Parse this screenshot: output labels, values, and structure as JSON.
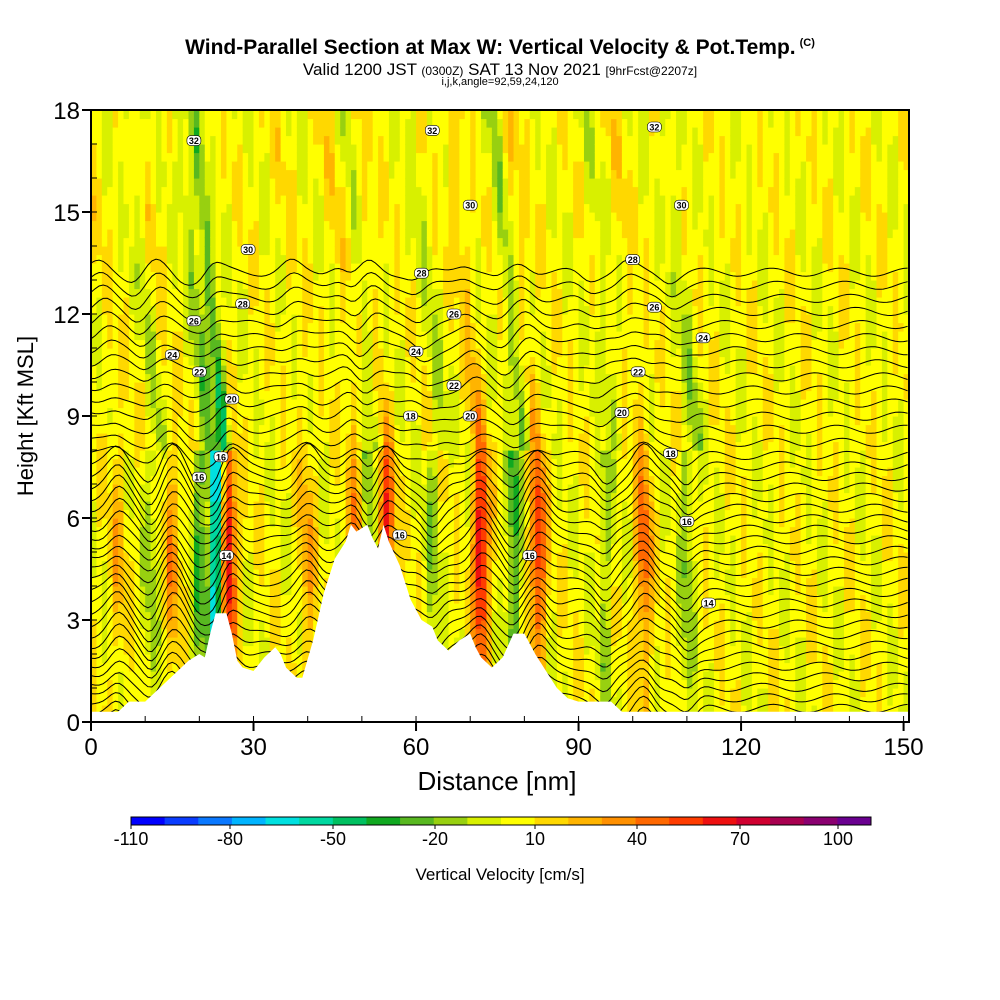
{
  "chart_data": {
    "type": "heatmap",
    "title": "Wind-Parallel Section at Max W: Vertical Velocity & Pot.Temp.",
    "title_mark": "(C)",
    "subtitle_main": "Valid 1200 JST",
    "subtitle_z": "(0300Z)",
    "subtitle_date": "SAT 13 Nov 2021",
    "subtitle_fcst": "[9hrFcst@2207z]",
    "subtitle2": "i,j,k,angle=92,59,24,120",
    "xlabel": "Distance [nm]",
    "ylabel": "Height [Kft MSL]",
    "xlim": [
      0,
      151
    ],
    "ylim": [
      0,
      18
    ],
    "xticks": [
      "0",
      "30",
      "60",
      "90",
      "120",
      "150"
    ],
    "yticks": [
      "0",
      "3",
      "6",
      "9",
      "12",
      "15",
      "18"
    ],
    "colorbar": {
      "label": "Vertical Velocity [cm/s]",
      "tick_labels": [
        "-110",
        "-80",
        "-50",
        "-20",
        "10",
        "40",
        "70",
        "100"
      ],
      "colors": [
        "#0000ff",
        "#0a3cff",
        "#0a78ff",
        "#00b4ff",
        "#00e0e0",
        "#00d8a0",
        "#00c060",
        "#10a820",
        "#58b820",
        "#98d010",
        "#d8f000",
        "#ffff00",
        "#ffd800",
        "#ffb400",
        "#ff9000",
        "#ff6800",
        "#ff3c00",
        "#ee1010",
        "#d00030",
        "#a80050",
        "#8a0070",
        "#6a0090"
      ]
    },
    "terrain": [
      [
        0,
        0.3
      ],
      [
        5,
        0.3
      ],
      [
        7,
        0.6
      ],
      [
        10,
        0.6
      ],
      [
        12,
        0.9
      ],
      [
        14,
        1.2
      ],
      [
        16,
        1.5
      ],
      [
        18,
        1.8
      ],
      [
        20,
        2.0
      ],
      [
        21,
        1.9
      ],
      [
        22,
        2.6
      ],
      [
        23,
        3.2
      ],
      [
        25,
        3.2
      ],
      [
        26,
        2.6
      ],
      [
        27,
        1.8
      ],
      [
        28,
        1.6
      ],
      [
        30,
        1.5
      ],
      [
        32,
        1.9
      ],
      [
        34,
        2.2
      ],
      [
        35,
        2.0
      ],
      [
        36,
        1.6
      ],
      [
        38,
        1.3
      ],
      [
        39,
        1.3
      ],
      [
        41,
        2.4
      ],
      [
        43,
        3.8
      ],
      [
        45,
        4.8
      ],
      [
        47,
        5.3
      ],
      [
        48,
        5.8
      ],
      [
        49,
        5.6
      ],
      [
        51,
        5.8
      ],
      [
        52,
        5.4
      ],
      [
        53,
        5.1
      ],
      [
        54,
        5.8
      ],
      [
        55,
        5.3
      ],
      [
        57,
        4.6
      ],
      [
        59,
        3.6
      ],
      [
        61,
        3.0
      ],
      [
        63,
        2.8
      ],
      [
        64,
        2.4
      ],
      [
        66,
        2.1
      ],
      [
        68,
        2.4
      ],
      [
        70,
        2.6
      ],
      [
        71,
        2.2
      ],
      [
        72,
        1.9
      ],
      [
        74,
        1.6
      ],
      [
        76,
        1.9
      ],
      [
        78,
        2.6
      ],
      [
        80,
        2.6
      ],
      [
        82,
        2.0
      ],
      [
        84,
        1.5
      ],
      [
        86,
        1.0
      ],
      [
        88,
        0.7
      ],
      [
        90,
        0.6
      ],
      [
        96,
        0.6
      ],
      [
        98,
        0.3
      ],
      [
        151,
        0.3
      ]
    ],
    "updrafts": [
      {
        "x": 25.5,
        "peak": 70
      },
      {
        "x": 54.5,
        "peak": 65
      },
      {
        "x": 72.0,
        "peak": 75
      },
      {
        "x": 82.5,
        "peak": 60
      },
      {
        "x": 102.0,
        "peak": 45
      },
      {
        "x": 49.0,
        "peak": 40
      },
      {
        "x": 15.0,
        "peak": 30
      },
      {
        "x": 40.0,
        "peak": 25
      },
      {
        "x": 5.0,
        "peak": 20
      }
    ],
    "downdrafts": [
      {
        "x": 23.0,
        "peak": -85
      },
      {
        "x": 78.0,
        "peak": -40
      },
      {
        "x": 20.0,
        "peak": -35
      },
      {
        "x": 51.0,
        "peak": -30
      },
      {
        "x": 110.0,
        "peak": -25
      },
      {
        "x": 63.0,
        "peak": -20
      },
      {
        "x": 95.0,
        "peak": -20
      },
      {
        "x": 11.0,
        "peak": -20
      }
    ],
    "potential_temperature_contours": {
      "levels_labeled": [
        14,
        16,
        18,
        20,
        22,
        24,
        26,
        28,
        30,
        32
      ],
      "labels": [
        {
          "text": "32",
          "x": 19,
          "y": 17.1
        },
        {
          "text": "32",
          "x": 63,
          "y": 17.4
        },
        {
          "text": "32",
          "x": 104,
          "y": 17.5
        },
        {
          "text": "30",
          "x": 29,
          "y": 13.9
        },
        {
          "text": "30",
          "x": 70,
          "y": 15.2
        },
        {
          "text": "30",
          "x": 109,
          "y": 15.2
        },
        {
          "text": "28",
          "x": 28,
          "y": 12.3
        },
        {
          "text": "28",
          "x": 61,
          "y": 13.2
        },
        {
          "text": "28",
          "x": 100,
          "y": 13.6
        },
        {
          "text": "26",
          "x": 19,
          "y": 11.8
        },
        {
          "text": "26",
          "x": 67,
          "y": 12.0
        },
        {
          "text": "26",
          "x": 104,
          "y": 12.2
        },
        {
          "text": "24",
          "x": 15,
          "y": 10.8
        },
        {
          "text": "24",
          "x": 60,
          "y": 10.9
        },
        {
          "text": "24",
          "x": 113,
          "y": 11.3
        },
        {
          "text": "22",
          "x": 20,
          "y": 10.3
        },
        {
          "text": "22",
          "x": 67,
          "y": 9.9
        },
        {
          "text": "22",
          "x": 101,
          "y": 10.3
        },
        {
          "text": "20",
          "x": 26,
          "y": 9.5
        },
        {
          "text": "20",
          "x": 70,
          "y": 9.0
        },
        {
          "text": "20",
          "x": 98,
          "y": 9.1
        },
        {
          "text": "18",
          "x": 59,
          "y": 9.0
        },
        {
          "text": "18",
          "x": 107,
          "y": 7.9
        },
        {
          "text": "16",
          "x": 24,
          "y": 7.8
        },
        {
          "text": "16",
          "x": 20,
          "y": 7.2
        },
        {
          "text": "16",
          "x": 57,
          "y": 5.5
        },
        {
          "text": "16",
          "x": 81,
          "y": 4.9
        },
        {
          "text": "16",
          "x": 110,
          "y": 5.9
        },
        {
          "text": "14",
          "x": 25,
          "y": 4.9
        },
        {
          "text": "14",
          "x": 114,
          "y": 3.5
        }
      ]
    }
  }
}
